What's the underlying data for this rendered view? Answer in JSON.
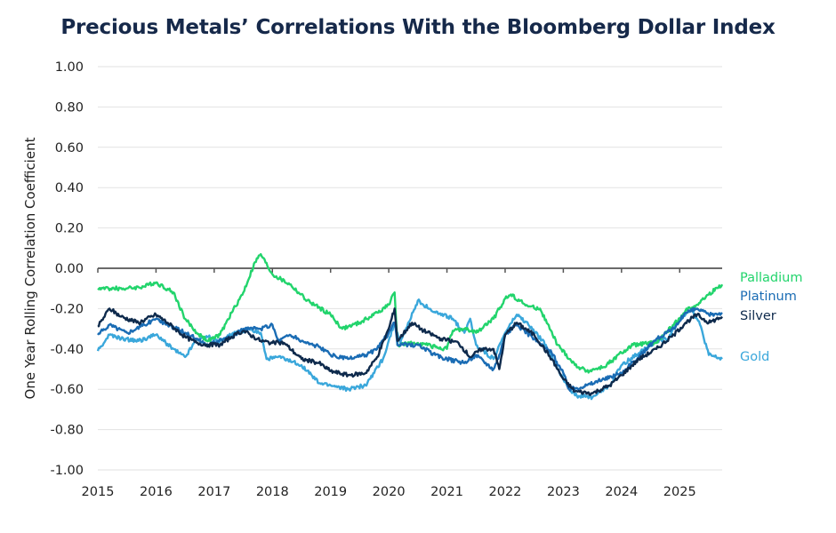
{
  "chart_data": {
    "type": "line",
    "title": "Precious Metals’ Correlations With the Bloomberg Dollar Index",
    "xlabel": "",
    "ylabel": "One Year Rolling Correlation Coefficient",
    "xlim": [
      2015,
      2025.73
    ],
    "ylim": [
      -1.0,
      1.0
    ],
    "x_ticks": [
      "2015",
      "2016",
      "2017",
      "2018",
      "2019",
      "2020",
      "2021",
      "2022",
      "2023",
      "2024",
      "2025"
    ],
    "y_ticks": [
      "1.00",
      "0.80",
      "0.60",
      "0.40",
      "0.20",
      "0.00",
      "-0.20",
      "-0.40",
      "-0.60",
      "-0.80",
      "-1.00"
    ],
    "grid": "horizontal",
    "legend": "right, labels at line ends",
    "series": [
      {
        "name": "Palladium",
        "color": "#22d46c",
        "points": [
          [
            2015.0,
            -0.1
          ],
          [
            2015.5,
            -0.1
          ],
          [
            2015.8,
            -0.09
          ],
          [
            2016.0,
            -0.07
          ],
          [
            2016.3,
            -0.12
          ],
          [
            2016.5,
            -0.25
          ],
          [
            2016.7,
            -0.32
          ],
          [
            2016.9,
            -0.36
          ],
          [
            2017.1,
            -0.33
          ],
          [
            2017.3,
            -0.22
          ],
          [
            2017.5,
            -0.12
          ],
          [
            2017.7,
            0.03
          ],
          [
            2017.8,
            0.07
          ],
          [
            2018.0,
            -0.03
          ],
          [
            2018.3,
            -0.08
          ],
          [
            2018.6,
            -0.16
          ],
          [
            2019.0,
            -0.23
          ],
          [
            2019.2,
            -0.3
          ],
          [
            2019.5,
            -0.27
          ],
          [
            2019.8,
            -0.22
          ],
          [
            2020.0,
            -0.18
          ],
          [
            2020.1,
            -0.12
          ],
          [
            2020.15,
            -0.38
          ],
          [
            2020.5,
            -0.37
          ],
          [
            2020.8,
            -0.39
          ],
          [
            2021.0,
            -0.4
          ],
          [
            2021.1,
            -0.31
          ],
          [
            2021.3,
            -0.3
          ],
          [
            2021.5,
            -0.32
          ],
          [
            2021.8,
            -0.25
          ],
          [
            2022.0,
            -0.15
          ],
          [
            2022.1,
            -0.13
          ],
          [
            2022.4,
            -0.19
          ],
          [
            2022.6,
            -0.2
          ],
          [
            2022.9,
            -0.38
          ],
          [
            2023.2,
            -0.48
          ],
          [
            2023.4,
            -0.51
          ],
          [
            2023.7,
            -0.49
          ],
          [
            2024.0,
            -0.42
          ],
          [
            2024.2,
            -0.38
          ],
          [
            2024.6,
            -0.37
          ],
          [
            2024.9,
            -0.28
          ],
          [
            2025.1,
            -0.21
          ],
          [
            2025.3,
            -0.18
          ],
          [
            2025.5,
            -0.13
          ],
          [
            2025.73,
            -0.08
          ]
        ]
      },
      {
        "name": "Platinum",
        "color": "#1a6cb4",
        "points": [
          [
            2015.0,
            -0.33
          ],
          [
            2015.2,
            -0.28
          ],
          [
            2015.5,
            -0.32
          ],
          [
            2015.8,
            -0.28
          ],
          [
            2016.0,
            -0.25
          ],
          [
            2016.2,
            -0.28
          ],
          [
            2016.5,
            -0.32
          ],
          [
            2016.7,
            -0.35
          ],
          [
            2016.9,
            -0.38
          ],
          [
            2017.1,
            -0.35
          ],
          [
            2017.3,
            -0.34
          ],
          [
            2017.5,
            -0.3
          ],
          [
            2017.8,
            -0.3
          ],
          [
            2018.0,
            -0.28
          ],
          [
            2018.1,
            -0.36
          ],
          [
            2018.3,
            -0.33
          ],
          [
            2018.5,
            -0.36
          ],
          [
            2018.8,
            -0.39
          ],
          [
            2019.0,
            -0.43
          ],
          [
            2019.3,
            -0.45
          ],
          [
            2019.6,
            -0.43
          ],
          [
            2019.8,
            -0.4
          ],
          [
            2020.0,
            -0.32
          ],
          [
            2020.1,
            -0.27
          ],
          [
            2020.15,
            -0.38
          ],
          [
            2020.5,
            -0.38
          ],
          [
            2020.8,
            -0.43
          ],
          [
            2021.0,
            -0.45
          ],
          [
            2021.3,
            -0.47
          ],
          [
            2021.5,
            -0.43
          ],
          [
            2021.8,
            -0.5
          ],
          [
            2021.9,
            -0.43
          ],
          [
            2022.0,
            -0.33
          ],
          [
            2022.2,
            -0.28
          ],
          [
            2022.5,
            -0.35
          ],
          [
            2022.8,
            -0.42
          ],
          [
            2023.0,
            -0.52
          ],
          [
            2023.1,
            -0.6
          ],
          [
            2023.4,
            -0.58
          ],
          [
            2023.7,
            -0.55
          ],
          [
            2024.0,
            -0.52
          ],
          [
            2024.3,
            -0.44
          ],
          [
            2024.6,
            -0.35
          ],
          [
            2024.9,
            -0.3
          ],
          [
            2025.1,
            -0.22
          ],
          [
            2025.3,
            -0.2
          ],
          [
            2025.5,
            -0.23
          ],
          [
            2025.73,
            -0.22
          ]
        ]
      },
      {
        "name": "Silver",
        "color": "#0e2a4c",
        "points": [
          [
            2015.0,
            -0.29
          ],
          [
            2015.2,
            -0.2
          ],
          [
            2015.4,
            -0.24
          ],
          [
            2015.7,
            -0.27
          ],
          [
            2016.0,
            -0.23
          ],
          [
            2016.2,
            -0.27
          ],
          [
            2016.5,
            -0.34
          ],
          [
            2016.7,
            -0.37
          ],
          [
            2016.9,
            -0.38
          ],
          [
            2017.1,
            -0.38
          ],
          [
            2017.3,
            -0.34
          ],
          [
            2017.5,
            -0.31
          ],
          [
            2017.8,
            -0.36
          ],
          [
            2018.0,
            -0.37
          ],
          [
            2018.2,
            -0.37
          ],
          [
            2018.5,
            -0.45
          ],
          [
            2018.8,
            -0.47
          ],
          [
            2019.0,
            -0.51
          ],
          [
            2019.3,
            -0.53
          ],
          [
            2019.6,
            -0.52
          ],
          [
            2019.8,
            -0.44
          ],
          [
            2020.0,
            -0.3
          ],
          [
            2020.1,
            -0.2
          ],
          [
            2020.15,
            -0.36
          ],
          [
            2020.4,
            -0.27
          ],
          [
            2020.6,
            -0.31
          ],
          [
            2020.9,
            -0.35
          ],
          [
            2021.2,
            -0.37
          ],
          [
            2021.4,
            -0.44
          ],
          [
            2021.6,
            -0.4
          ],
          [
            2021.8,
            -0.4
          ],
          [
            2021.9,
            -0.5
          ],
          [
            2022.0,
            -0.33
          ],
          [
            2022.2,
            -0.27
          ],
          [
            2022.5,
            -0.33
          ],
          [
            2022.8,
            -0.45
          ],
          [
            2023.0,
            -0.55
          ],
          [
            2023.2,
            -0.61
          ],
          [
            2023.5,
            -0.62
          ],
          [
            2023.8,
            -0.58
          ],
          [
            2024.0,
            -0.53
          ],
          [
            2024.3,
            -0.45
          ],
          [
            2024.6,
            -0.4
          ],
          [
            2024.9,
            -0.33
          ],
          [
            2025.1,
            -0.27
          ],
          [
            2025.3,
            -0.23
          ],
          [
            2025.5,
            -0.27
          ],
          [
            2025.73,
            -0.24
          ]
        ]
      },
      {
        "name": "Gold",
        "color": "#3aa7db",
        "points": [
          [
            2015.0,
            -0.41
          ],
          [
            2015.2,
            -0.33
          ],
          [
            2015.4,
            -0.35
          ],
          [
            2015.7,
            -0.36
          ],
          [
            2016.0,
            -0.33
          ],
          [
            2016.3,
            -0.4
          ],
          [
            2016.5,
            -0.44
          ],
          [
            2016.7,
            -0.35
          ],
          [
            2016.9,
            -0.34
          ],
          [
            2017.1,
            -0.36
          ],
          [
            2017.3,
            -0.33
          ],
          [
            2017.6,
            -0.3
          ],
          [
            2017.8,
            -0.32
          ],
          [
            2017.9,
            -0.45
          ],
          [
            2018.1,
            -0.44
          ],
          [
            2018.5,
            -0.48
          ],
          [
            2018.8,
            -0.57
          ],
          [
            2019.0,
            -0.58
          ],
          [
            2019.3,
            -0.6
          ],
          [
            2019.6,
            -0.58
          ],
          [
            2019.9,
            -0.45
          ],
          [
            2020.1,
            -0.27
          ],
          [
            2020.2,
            -0.37
          ],
          [
            2020.5,
            -0.16
          ],
          [
            2020.8,
            -0.22
          ],
          [
            2021.1,
            -0.25
          ],
          [
            2021.3,
            -0.32
          ],
          [
            2021.4,
            -0.25
          ],
          [
            2021.5,
            -0.38
          ],
          [
            2021.8,
            -0.45
          ],
          [
            2022.0,
            -0.32
          ],
          [
            2022.2,
            -0.23
          ],
          [
            2022.4,
            -0.28
          ],
          [
            2022.7,
            -0.38
          ],
          [
            2023.0,
            -0.55
          ],
          [
            2023.2,
            -0.63
          ],
          [
            2023.5,
            -0.64
          ],
          [
            2023.8,
            -0.58
          ],
          [
            2024.0,
            -0.48
          ],
          [
            2024.3,
            -0.42
          ],
          [
            2024.6,
            -0.36
          ],
          [
            2024.8,
            -0.35
          ],
          [
            2025.0,
            -0.25
          ],
          [
            2025.2,
            -0.2
          ],
          [
            2025.35,
            -0.28
          ],
          [
            2025.5,
            -0.43
          ],
          [
            2025.73,
            -0.45
          ]
        ]
      }
    ]
  }
}
